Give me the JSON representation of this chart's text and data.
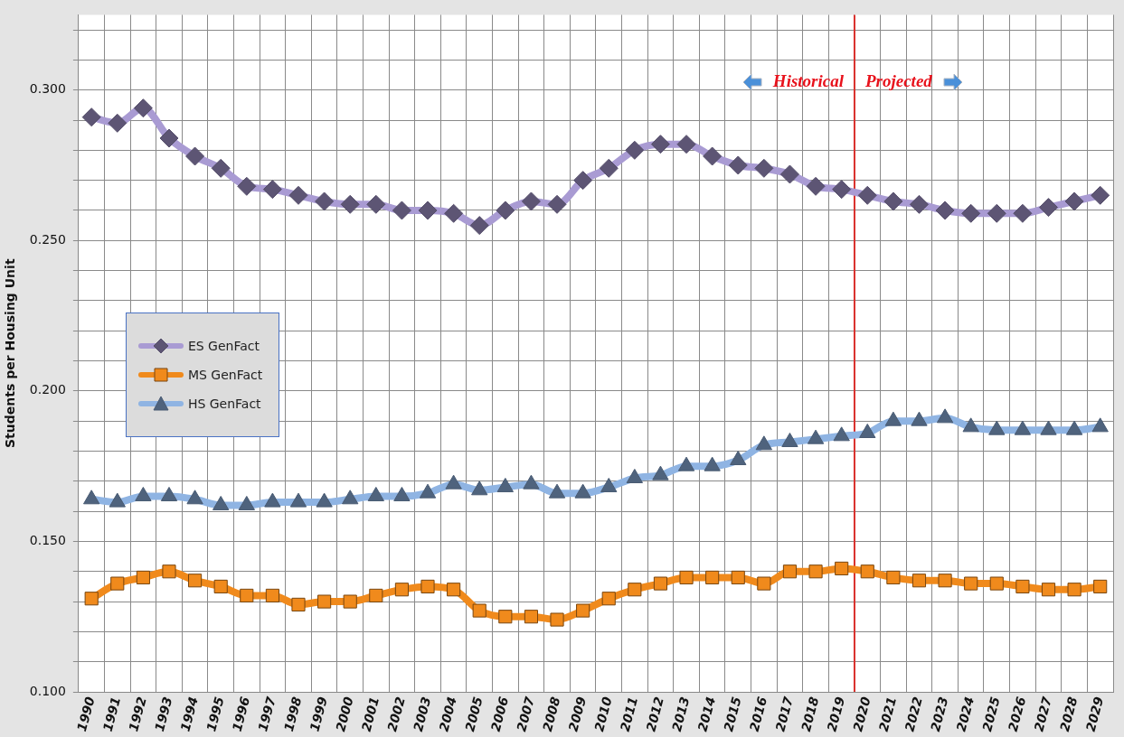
{
  "chart_data": {
    "type": "line",
    "ylabel": "Students per Housing Unit",
    "categories": [
      "1990",
      "1991",
      "1992",
      "1993",
      "1994",
      "1995",
      "1996",
      "1997",
      "1998",
      "1999",
      "2000",
      "2001",
      "2002",
      "2003",
      "2004",
      "2005",
      "2006",
      "2007",
      "2008",
      "2009",
      "2010",
      "2011",
      "2012",
      "2013",
      "2014",
      "2015",
      "2016",
      "2017",
      "2018",
      "2019",
      "2020",
      "2021",
      "2022",
      "2023",
      "2024",
      "2025",
      "2026",
      "2027",
      "2028",
      "2029"
    ],
    "series": [
      {
        "name": "ES GenFact",
        "color": "#a99bd3",
        "marker": "diamond",
        "values": [
          0.291,
          0.289,
          0.294,
          0.284,
          0.278,
          0.274,
          0.268,
          0.267,
          0.265,
          0.263,
          0.262,
          0.262,
          0.26,
          0.26,
          0.259,
          0.255,
          0.26,
          0.263,
          0.262,
          0.27,
          0.274,
          0.28,
          0.282,
          0.282,
          0.278,
          0.275,
          0.274,
          0.272,
          0.268,
          0.267,
          0.265,
          0.263,
          0.262,
          0.26,
          0.259,
          0.259,
          0.259,
          0.261,
          0.263,
          0.265
        ]
      },
      {
        "name": "MS GenFact",
        "color": "#f08a1c",
        "marker": "square",
        "values": [
          0.131,
          0.136,
          0.138,
          0.14,
          0.137,
          0.135,
          0.132,
          0.132,
          0.129,
          0.13,
          0.13,
          0.132,
          0.134,
          0.135,
          0.134,
          0.127,
          0.125,
          0.125,
          0.124,
          0.127,
          0.131,
          0.134,
          0.136,
          0.138,
          0.138,
          0.138,
          0.136,
          0.14,
          0.14,
          0.141,
          0.14,
          0.138,
          0.137,
          0.137,
          0.136,
          0.136,
          0.135,
          0.134,
          0.134,
          0.135
        ]
      },
      {
        "name": "HS GenFact",
        "color": "#8fb4e3",
        "marker": "triangle",
        "values": [
          0.164,
          0.163,
          0.165,
          0.165,
          0.164,
          0.162,
          0.162,
          0.163,
          0.163,
          0.163,
          0.164,
          0.165,
          0.165,
          0.166,
          0.169,
          0.167,
          0.168,
          0.169,
          0.166,
          0.166,
          0.168,
          0.171,
          0.172,
          0.175,
          0.175,
          0.177,
          0.182,
          0.183,
          0.184,
          0.185,
          0.186,
          0.19,
          0.19,
          0.191,
          0.188,
          0.187,
          0.187,
          0.187,
          0.187,
          0.188
        ]
      }
    ],
    "ylim": [
      0.1,
      0.325
    ],
    "yticks": [
      {
        "value": 0.1,
        "label": "0.100"
      },
      {
        "value": 0.11,
        "label": null
      },
      {
        "value": 0.12,
        "label": null
      },
      {
        "value": 0.13,
        "label": null
      },
      {
        "value": 0.14,
        "label": null
      },
      {
        "value": 0.15,
        "label": "0.150"
      },
      {
        "value": 0.16,
        "label": null
      },
      {
        "value": 0.17,
        "label": null
      },
      {
        "value": 0.18,
        "label": null
      },
      {
        "value": 0.19,
        "label": null
      },
      {
        "value": 0.2,
        "label": "0.200"
      },
      {
        "value": 0.21,
        "label": null
      },
      {
        "value": 0.22,
        "label": null
      },
      {
        "value": 0.23,
        "label": null
      },
      {
        "value": 0.24,
        "label": null
      },
      {
        "value": 0.25,
        "label": "0.250"
      },
      {
        "value": 0.26,
        "label": null
      },
      {
        "value": 0.27,
        "label": null
      },
      {
        "value": 0.28,
        "label": null
      },
      {
        "value": 0.29,
        "label": null
      },
      {
        "value": 0.3,
        "label": "0.300"
      },
      {
        "value": 0.31,
        "label": null
      },
      {
        "value": 0.32,
        "label": null
      }
    ],
    "ref_lines": [
      {
        "axis": "x",
        "value": "2020",
        "color": "#d9302c"
      }
    ],
    "annotations": [
      "Historical",
      "Projected"
    ],
    "grid": true,
    "legend": "left",
    "line_style": "solid"
  }
}
